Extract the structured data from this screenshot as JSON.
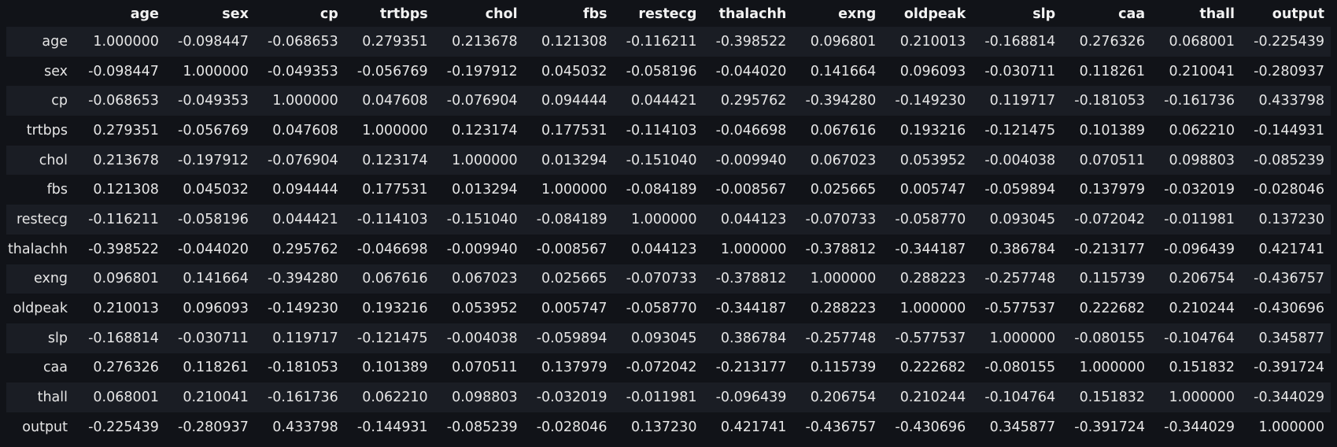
{
  "table": {
    "columns": [
      "age",
      "sex",
      "cp",
      "trtbps",
      "chol",
      "fbs",
      "restecg",
      "thalachh",
      "exng",
      "oldpeak",
      "slp",
      "caa",
      "thall",
      "output"
    ],
    "rows": [
      {
        "label": "age",
        "values": [
          "1.000000",
          "-0.098447",
          "-0.068653",
          "0.279351",
          "0.213678",
          "0.121308",
          "-0.116211",
          "-0.398522",
          "0.096801",
          "0.210013",
          "-0.168814",
          "0.276326",
          "0.068001",
          "-0.225439"
        ]
      },
      {
        "label": "sex",
        "values": [
          "-0.098447",
          "1.000000",
          "-0.049353",
          "-0.056769",
          "-0.197912",
          "0.045032",
          "-0.058196",
          "-0.044020",
          "0.141664",
          "0.096093",
          "-0.030711",
          "0.118261",
          "0.210041",
          "-0.280937"
        ]
      },
      {
        "label": "cp",
        "values": [
          "-0.068653",
          "-0.049353",
          "1.000000",
          "0.047608",
          "-0.076904",
          "0.094444",
          "0.044421",
          "0.295762",
          "-0.394280",
          "-0.149230",
          "0.119717",
          "-0.181053",
          "-0.161736",
          "0.433798"
        ]
      },
      {
        "label": "trtbps",
        "values": [
          "0.279351",
          "-0.056769",
          "0.047608",
          "1.000000",
          "0.123174",
          "0.177531",
          "-0.114103",
          "-0.046698",
          "0.067616",
          "0.193216",
          "-0.121475",
          "0.101389",
          "0.062210",
          "-0.144931"
        ]
      },
      {
        "label": "chol",
        "values": [
          "0.213678",
          "-0.197912",
          "-0.076904",
          "0.123174",
          "1.000000",
          "0.013294",
          "-0.151040",
          "-0.009940",
          "0.067023",
          "0.053952",
          "-0.004038",
          "0.070511",
          "0.098803",
          "-0.085239"
        ]
      },
      {
        "label": "fbs",
        "values": [
          "0.121308",
          "0.045032",
          "0.094444",
          "0.177531",
          "0.013294",
          "1.000000",
          "-0.084189",
          "-0.008567",
          "0.025665",
          "0.005747",
          "-0.059894",
          "0.137979",
          "-0.032019",
          "-0.028046"
        ]
      },
      {
        "label": "restecg",
        "values": [
          "-0.116211",
          "-0.058196",
          "0.044421",
          "-0.114103",
          "-0.151040",
          "-0.084189",
          "1.000000",
          "0.044123",
          "-0.070733",
          "-0.058770",
          "0.093045",
          "-0.072042",
          "-0.011981",
          "0.137230"
        ]
      },
      {
        "label": "thalachh",
        "values": [
          "-0.398522",
          "-0.044020",
          "0.295762",
          "-0.046698",
          "-0.009940",
          "-0.008567",
          "0.044123",
          "1.000000",
          "-0.378812",
          "-0.344187",
          "0.386784",
          "-0.213177",
          "-0.096439",
          "0.421741"
        ]
      },
      {
        "label": "exng",
        "values": [
          "0.096801",
          "0.141664",
          "-0.394280",
          "0.067616",
          "0.067023",
          "0.025665",
          "-0.070733",
          "-0.378812",
          "1.000000",
          "0.288223",
          "-0.257748",
          "0.115739",
          "0.206754",
          "-0.436757"
        ]
      },
      {
        "label": "oldpeak",
        "values": [
          "0.210013",
          "0.096093",
          "-0.149230",
          "0.193216",
          "0.053952",
          "0.005747",
          "-0.058770",
          "-0.344187",
          "0.288223",
          "1.000000",
          "-0.577537",
          "0.222682",
          "0.210244",
          "-0.430696"
        ]
      },
      {
        "label": "slp",
        "values": [
          "-0.168814",
          "-0.030711",
          "0.119717",
          "-0.121475",
          "-0.004038",
          "-0.059894",
          "0.093045",
          "0.386784",
          "-0.257748",
          "-0.577537",
          "1.000000",
          "-0.080155",
          "-0.104764",
          "0.345877"
        ]
      },
      {
        "label": "caa",
        "values": [
          "0.276326",
          "0.118261",
          "-0.181053",
          "0.101389",
          "0.070511",
          "0.137979",
          "-0.072042",
          "-0.213177",
          "0.115739",
          "0.222682",
          "-0.080155",
          "1.000000",
          "0.151832",
          "-0.391724"
        ]
      },
      {
        "label": "thall",
        "values": [
          "0.068001",
          "0.210041",
          "-0.161736",
          "0.062210",
          "0.098803",
          "-0.032019",
          "-0.011981",
          "-0.096439",
          "0.206754",
          "0.210244",
          "-0.104764",
          "0.151832",
          "1.000000",
          "-0.344029"
        ]
      },
      {
        "label": "output",
        "values": [
          "-0.225439",
          "-0.280937",
          "0.433798",
          "-0.144931",
          "-0.085239",
          "-0.028046",
          "0.137230",
          "0.421741",
          "-0.436757",
          "-0.430696",
          "0.345877",
          "-0.391724",
          "-0.344029",
          "1.000000"
        ]
      }
    ]
  }
}
